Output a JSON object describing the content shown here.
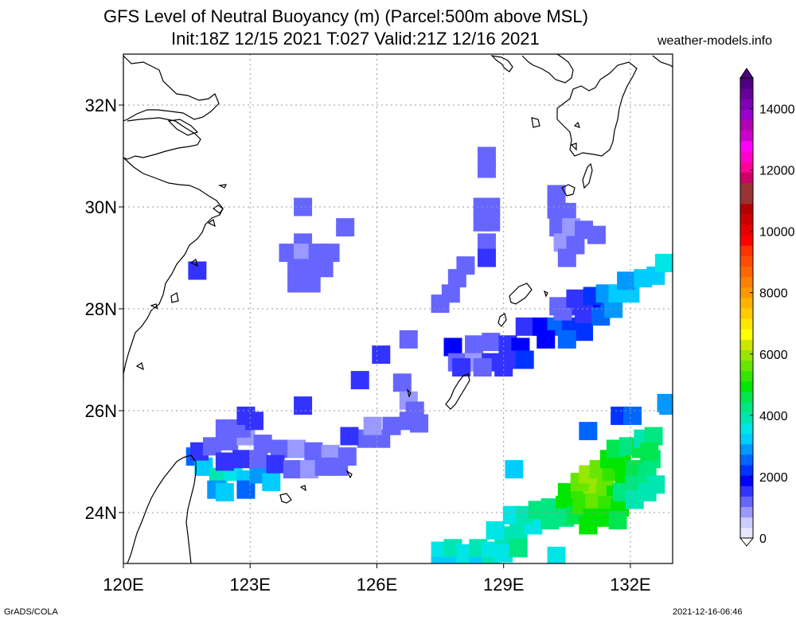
{
  "title_line1": "GFS Level of Neutral Buoyancy (m) (Parcel:500m above MSL)",
  "title_line2": "Init:18Z 12/15 2021 T:027 Valid:21Z 12/16 2021",
  "site": "weather-models.info",
  "footer_left": "GrADS/COLA",
  "footer_right": "2021-12-16-06:46",
  "map": {
    "lon_range": [
      120,
      133
    ],
    "lat_range": [
      23,
      33
    ],
    "lon_ticks": [
      {
        "value": 120,
        "label": "120E"
      },
      {
        "value": 123,
        "label": "123E"
      },
      {
        "value": 126,
        "label": "126E"
      },
      {
        "value": 129,
        "label": "129E"
      },
      {
        "value": 132,
        "label": "132E"
      }
    ],
    "lat_ticks": [
      {
        "value": 24,
        "label": "24N"
      },
      {
        "value": 26,
        "label": "26N"
      },
      {
        "value": 28,
        "label": "28N"
      },
      {
        "value": 30,
        "label": "30N"
      },
      {
        "value": 32,
        "label": "32N"
      }
    ],
    "grid": true,
    "cells": [
      [
        121.75,
        28.75,
        1400
      ],
      [
        124.25,
        30.0,
        1100
      ],
      [
        125.25,
        29.6,
        1300
      ],
      [
        124.25,
        29.3,
        1100
      ],
      [
        123.9,
        29.1,
        1100
      ],
      [
        124.25,
        29.1,
        1000
      ],
      [
        124.6,
        29.1,
        1100
      ],
      [
        124.9,
        29.1,
        1200
      ],
      [
        124.1,
        28.8,
        1200
      ],
      [
        124.45,
        28.8,
        1100
      ],
      [
        124.75,
        28.8,
        1200
      ],
      [
        124.1,
        28.5,
        1200
      ],
      [
        124.45,
        28.5,
        1300
      ],
      [
        128.6,
        31.0,
        1300
      ],
      [
        128.6,
        30.75,
        1300
      ],
      [
        128.5,
        30.0,
        1100
      ],
      [
        128.7,
        30.0,
        1100
      ],
      [
        128.5,
        29.7,
        1100
      ],
      [
        128.7,
        29.7,
        1200
      ],
      [
        128.6,
        29.3,
        1300
      ],
      [
        128.6,
        29.0,
        1400
      ],
      [
        130.25,
        30.25,
        1200
      ],
      [
        130.25,
        29.95,
        1300
      ],
      [
        130.5,
        29.9,
        1200
      ],
      [
        130.3,
        29.6,
        1100
      ],
      [
        130.6,
        29.6,
        1000
      ],
      [
        130.9,
        29.55,
        1100
      ],
      [
        131.2,
        29.45,
        1200
      ],
      [
        130.4,
        29.3,
        1000
      ],
      [
        130.7,
        29.25,
        1100
      ],
      [
        130.5,
        29.0,
        1200
      ],
      [
        128.1,
        28.85,
        1300
      ],
      [
        127.9,
        28.6,
        1200
      ],
      [
        127.75,
        28.3,
        1100
      ],
      [
        127.5,
        28.1,
        1200
      ],
      [
        126.1,
        27.1,
        1400
      ],
      [
        126.75,
        27.4,
        1200
      ],
      [
        125.6,
        26.6,
        1500
      ],
      [
        124.25,
        26.1,
        1600
      ],
      [
        126.6,
        26.55,
        1300
      ],
      [
        126.75,
        26.2,
        1000
      ],
      [
        126.9,
        26.0,
        1200
      ],
      [
        126.75,
        25.8,
        1100
      ],
      [
        127.0,
        25.75,
        1100
      ],
      [
        127.8,
        27.25,
        1800
      ],
      [
        128.3,
        27.3,
        1300
      ],
      [
        128.7,
        27.35,
        1100
      ],
      [
        129.1,
        27.3,
        1500
      ],
      [
        129.4,
        27.25,
        2000
      ],
      [
        127.9,
        26.95,
        1200
      ],
      [
        128.3,
        26.95,
        1000
      ],
      [
        128.7,
        26.95,
        1400
      ],
      [
        129.1,
        27.0,
        1700
      ],
      [
        129.5,
        27.0,
        2100
      ],
      [
        128.0,
        26.85,
        1400
      ],
      [
        128.5,
        26.85,
        1300
      ],
      [
        129.0,
        26.85,
        1500
      ],
      [
        129.5,
        27.65,
        1600
      ],
      [
        129.9,
        27.65,
        2000
      ],
      [
        130.25,
        27.65,
        2400
      ],
      [
        130.6,
        27.65,
        2200
      ],
      [
        130.9,
        27.55,
        2300
      ],
      [
        130.0,
        27.4,
        2000
      ],
      [
        130.5,
        27.4,
        2600
      ],
      [
        130.3,
        28.05,
        1300
      ],
      [
        130.7,
        28.05,
        1400
      ],
      [
        131.1,
        28.05,
        2000
      ],
      [
        131.5,
        28.0,
        2700
      ],
      [
        130.4,
        27.95,
        1200
      ],
      [
        130.9,
        27.9,
        1700
      ],
      [
        131.3,
        27.85,
        2600
      ],
      [
        131.6,
        28.0,
        3000
      ],
      [
        130.7,
        28.2,
        1400
      ],
      [
        131.1,
        28.25,
        2200
      ],
      [
        131.4,
        28.3,
        3000
      ],
      [
        131.7,
        28.3,
        3200
      ],
      [
        132.0,
        28.3,
        3100
      ],
      [
        131.9,
        28.55,
        3000
      ],
      [
        132.3,
        28.6,
        3300
      ],
      [
        132.6,
        28.65,
        3400
      ],
      [
        132.8,
        28.9,
        3600
      ],
      [
        131.75,
        25.9,
        2200
      ],
      [
        132.05,
        25.9,
        2600
      ],
      [
        132.85,
        26.15,
        3000
      ],
      [
        131.0,
        25.6,
        2700
      ],
      [
        129.25,
        24.85,
        3300
      ],
      [
        121.7,
        25.1,
        2700
      ],
      [
        121.9,
        24.9,
        3200
      ],
      [
        122.25,
        24.7,
        3800
      ],
      [
        122.6,
        24.8,
        3600
      ],
      [
        122.9,
        24.65,
        3400
      ],
      [
        122.2,
        24.45,
        3000
      ],
      [
        122.4,
        24.4,
        3200
      ],
      [
        122.9,
        24.45,
        2500
      ],
      [
        123.2,
        24.75,
        3000
      ],
      [
        123.5,
        24.6,
        3400
      ],
      [
        121.8,
        25.2,
        1500
      ],
      [
        122.1,
        25.3,
        1200
      ],
      [
        122.5,
        25.4,
        1100
      ],
      [
        122.9,
        25.5,
        1000
      ],
      [
        123.3,
        25.35,
        1100
      ],
      [
        123.7,
        25.25,
        1300
      ],
      [
        124.1,
        25.25,
        1000
      ],
      [
        124.5,
        25.2,
        1100
      ],
      [
        124.9,
        25.15,
        1000
      ],
      [
        125.3,
        25.1,
        1200
      ],
      [
        122.4,
        25.0,
        1600
      ],
      [
        122.8,
        25.05,
        1400
      ],
      [
        123.2,
        25.05,
        1200
      ],
      [
        123.6,
        24.95,
        1400
      ],
      [
        124.0,
        24.85,
        1200
      ],
      [
        124.4,
        24.85,
        1000
      ],
      [
        124.75,
        24.9,
        1100
      ],
      [
        125.1,
        24.9,
        1300
      ],
      [
        122.4,
        25.65,
        1100
      ],
      [
        122.8,
        25.65,
        1200
      ],
      [
        123.1,
        25.8,
        1400
      ],
      [
        122.9,
        25.9,
        1700
      ],
      [
        125.75,
        25.45,
        1300
      ],
      [
        126.1,
        25.45,
        1200
      ],
      [
        125.35,
        25.5,
        1500
      ],
      [
        125.9,
        25.7,
        1000
      ],
      [
        126.35,
        25.7,
        1200
      ],
      [
        127.5,
        23.25,
        3500
      ],
      [
        127.5,
        22.95,
        3300
      ],
      [
        127.8,
        23.3,
        3800
      ],
      [
        127.8,
        22.95,
        3400
      ],
      [
        128.1,
        23.2,
        3700
      ],
      [
        128.1,
        22.95,
        3500
      ],
      [
        128.4,
        23.3,
        3900
      ],
      [
        128.4,
        22.95,
        3400
      ],
      [
        128.7,
        23.25,
        3600
      ],
      [
        128.7,
        22.95,
        3800
      ],
      [
        129.0,
        23.55,
        3900
      ],
      [
        129.0,
        23.2,
        3500
      ],
      [
        129.35,
        23.65,
        3800
      ],
      [
        129.35,
        23.3,
        4100
      ],
      [
        129.7,
        23.75,
        3700
      ],
      [
        128.8,
        23.65,
        3600
      ],
      [
        129.2,
        23.95,
        3700
      ],
      [
        129.5,
        23.95,
        3900
      ],
      [
        129.8,
        24.05,
        4200
      ],
      [
        130.1,
        24.1,
        4400
      ],
      [
        130.45,
        24.15,
        4800
      ],
      [
        130.1,
        23.85,
        4100
      ],
      [
        130.45,
        23.9,
        4400
      ],
      [
        130.7,
        23.95,
        4700
      ],
      [
        130.5,
        24.4,
        4800
      ],
      [
        130.8,
        24.45,
        5300
      ],
      [
        131.1,
        24.55,
        5800
      ],
      [
        131.4,
        24.5,
        5500
      ],
      [
        131.65,
        24.35,
        5000
      ],
      [
        130.85,
        24.15,
        5200
      ],
      [
        131.15,
        24.2,
        5600
      ],
      [
        131.45,
        24.15,
        5200
      ],
      [
        131.75,
        24.1,
        4800
      ],
      [
        131.1,
        23.9,
        5000
      ],
      [
        131.4,
        23.9,
        4900
      ],
      [
        131.7,
        23.85,
        4600
      ],
      [
        131.0,
        23.75,
        4900
      ],
      [
        130.8,
        24.6,
        5600
      ],
      [
        131.0,
        24.75,
        6000
      ],
      [
        131.25,
        24.85,
        5700
      ],
      [
        131.55,
        24.8,
        5300
      ],
      [
        131.85,
        24.65,
        4900
      ],
      [
        131.5,
        25.05,
        5000
      ],
      [
        131.8,
        25.0,
        4800
      ],
      [
        132.1,
        24.85,
        4500
      ],
      [
        132.4,
        24.75,
        4400
      ],
      [
        131.65,
        25.25,
        4600
      ],
      [
        131.95,
        25.3,
        4400
      ],
      [
        132.25,
        25.25,
        4700
      ],
      [
        132.5,
        25.05,
        4300
      ],
      [
        132.3,
        25.45,
        4000
      ],
      [
        132.55,
        25.5,
        4200
      ],
      [
        132.45,
        25.2,
        4500
      ],
      [
        132.1,
        24.55,
        4300
      ],
      [
        131.8,
        24.4,
        4300
      ],
      [
        132.1,
        24.25,
        3900
      ],
      [
        132.4,
        24.4,
        4000
      ],
      [
        132.6,
        24.55,
        3800
      ],
      [
        130.25,
        23.15,
        3600
      ],
      [
        132.9,
        26.1,
        3000
      ]
    ]
  },
  "colorbar": {
    "ticks": [
      {
        "value": 0,
        "label": "0"
      },
      {
        "value": 2000,
        "label": "2000"
      },
      {
        "value": 4000,
        "label": "4000"
      },
      {
        "value": 6000,
        "label": "6000"
      },
      {
        "value": 8000,
        "label": "8000"
      },
      {
        "value": 10000,
        "label": "10000"
      },
      {
        "value": 12000,
        "label": "12000"
      },
      {
        "value": 14000,
        "label": "14000"
      }
    ],
    "colors": [
      "#e6e6ff",
      "#ccccff",
      "#9999ff",
      "#6666ff",
      "#3333ff",
      "#0000ff",
      "#0033ff",
      "#0066ff",
      "#0099ff",
      "#00ccff",
      "#00e6e6",
      "#00e6b3",
      "#00e680",
      "#00e64d",
      "#00e600",
      "#33e600",
      "#66e600",
      "#99e600",
      "#cce600",
      "#ffff00",
      "#ffe600",
      "#ffcc00",
      "#ffb300",
      "#ff9900",
      "#ff8000",
      "#ff6600",
      "#ff4d00",
      "#ff3300",
      "#ff0000",
      "#e60000",
      "#cc0000",
      "#b30000",
      "#993333",
      "#993333",
      "#cc0066",
      "#ff0099",
      "#ff00cc",
      "#ff00ff",
      "#cc00cc",
      "#b300b3",
      "#9900cc",
      "#8000b3",
      "#660099",
      "#4d0080"
    ],
    "max": 15000
  }
}
